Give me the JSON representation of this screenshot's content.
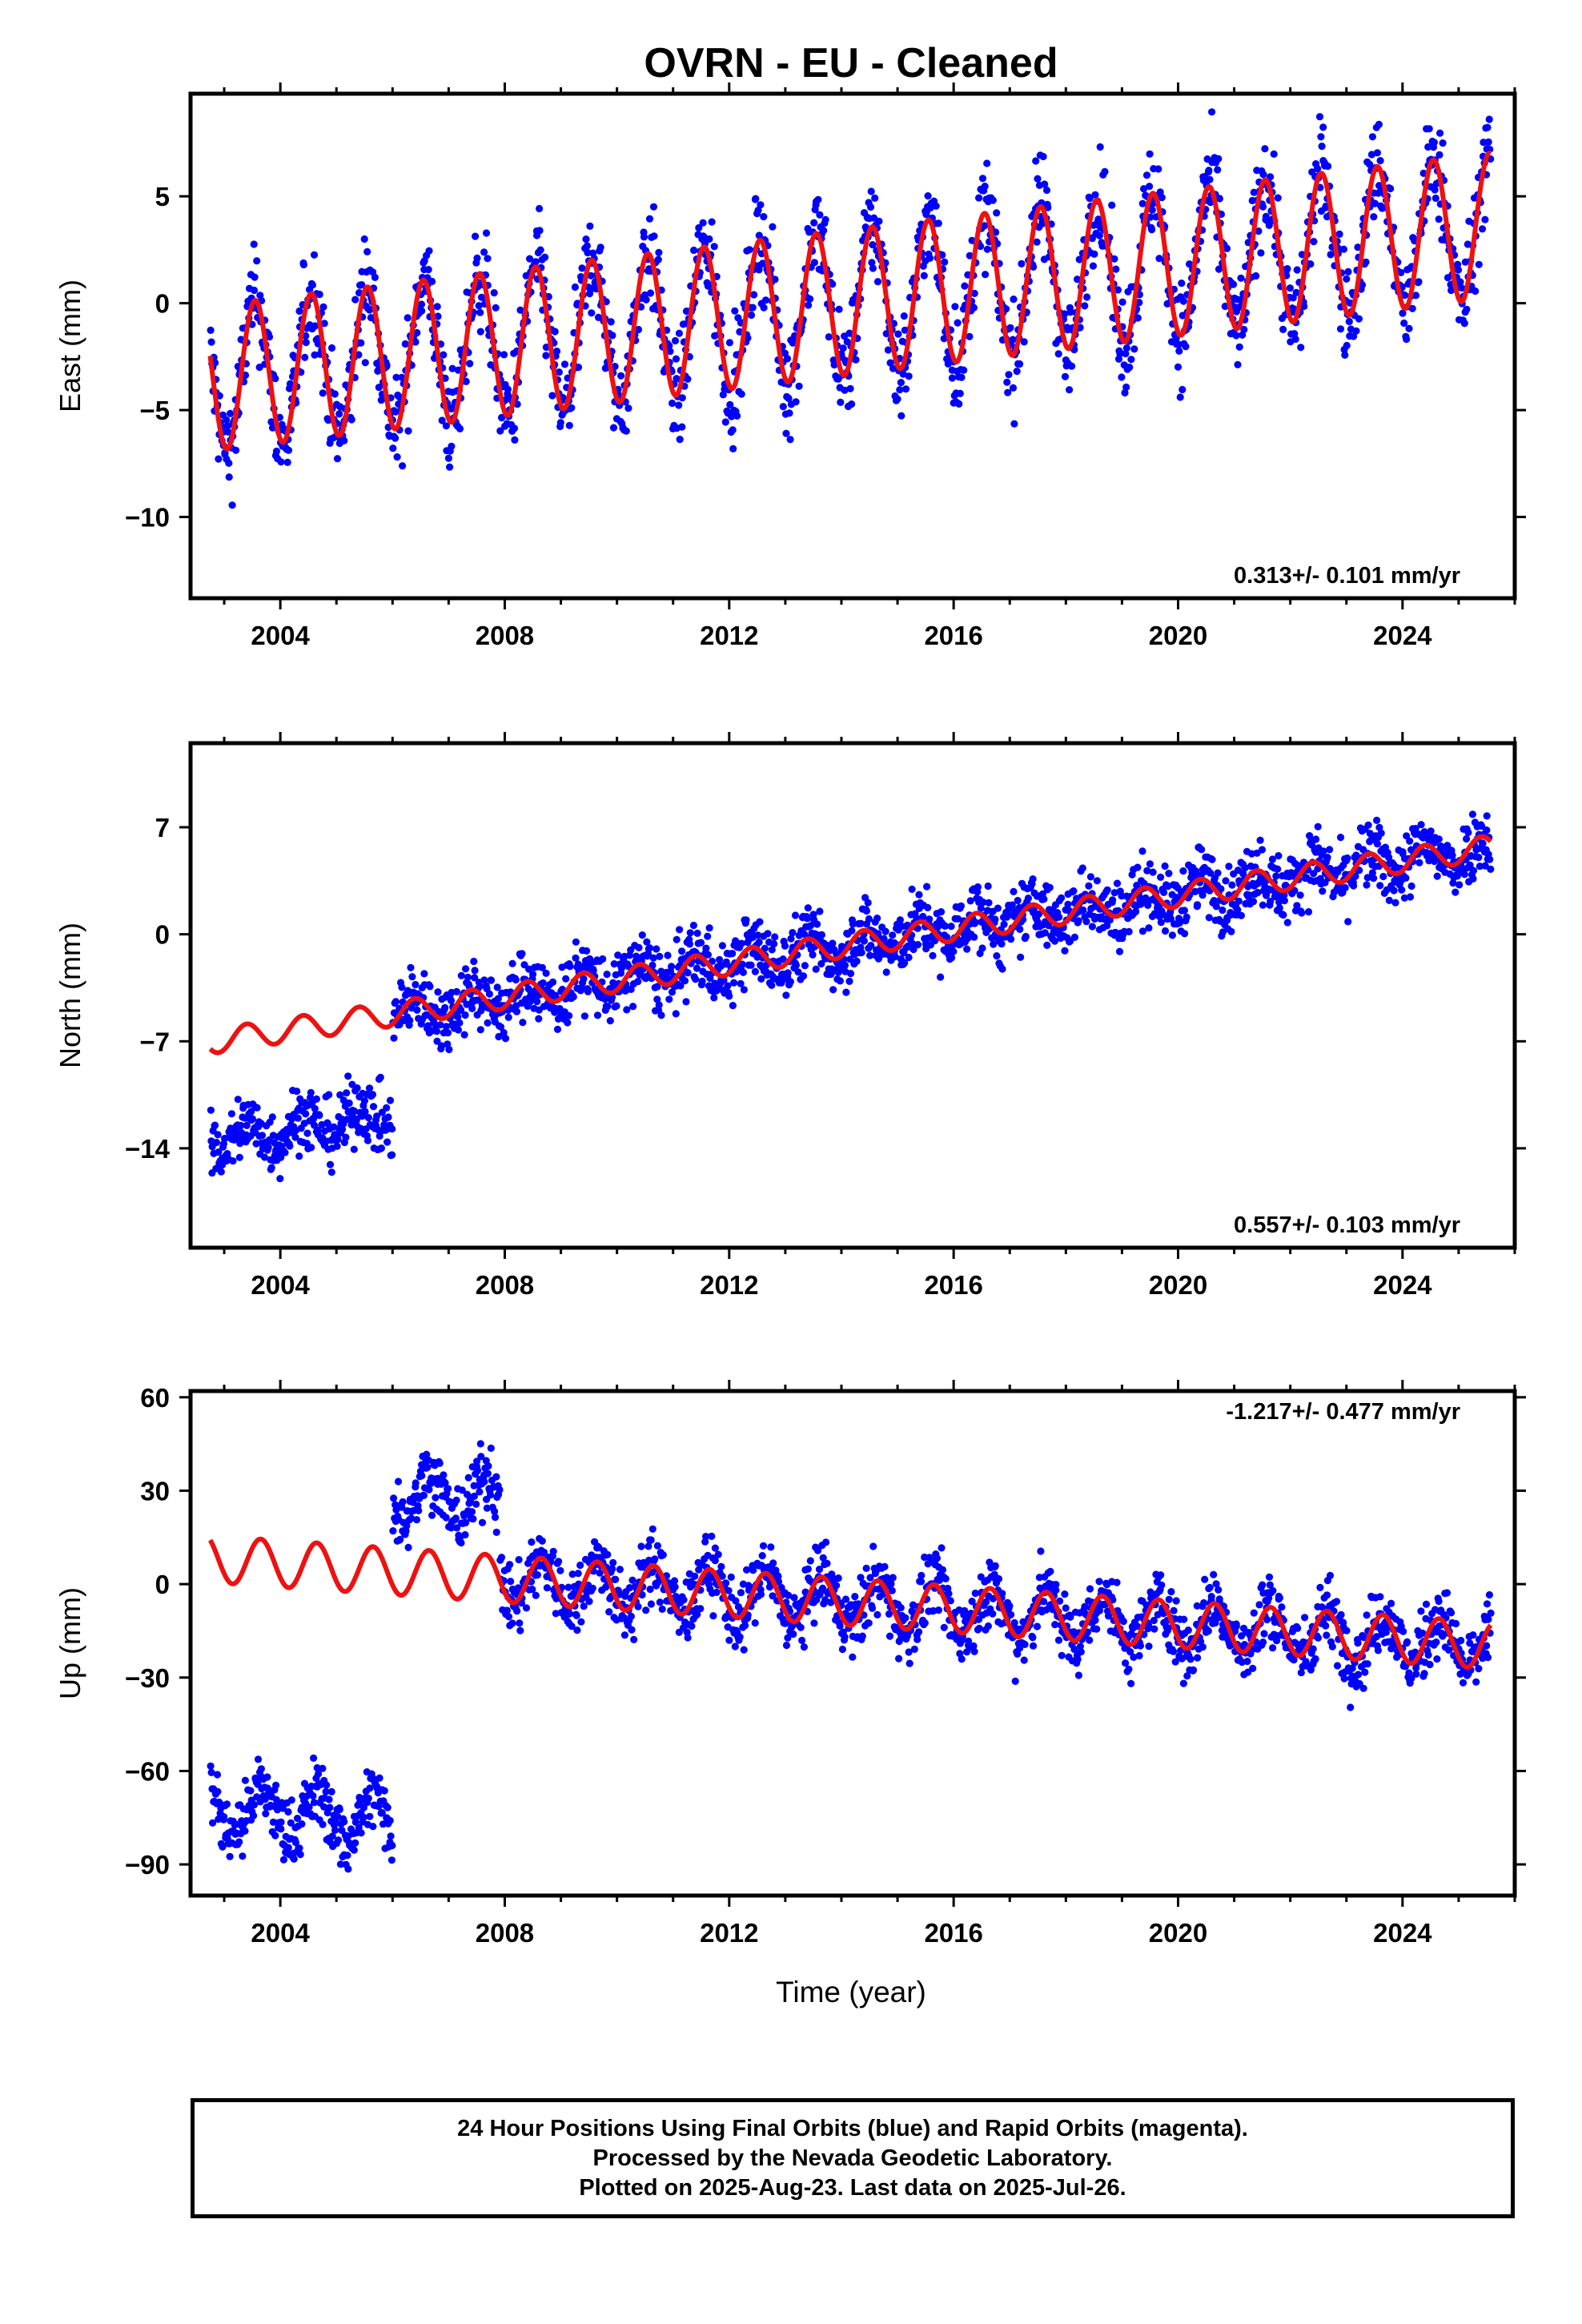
{
  "title": "OVRN  - EU - Cleaned",
  "colors": {
    "final_orbits": "#0000ff",
    "model_fit": "#ee1111",
    "frame": "#000000"
  },
  "chart_data": [
    {
      "type": "scatter",
      "component": "East",
      "ylabel": "East (mm)",
      "xlim": [
        2002.4,
        2026.0
      ],
      "ylim": [
        -13.8,
        9.8
      ],
      "xticks": [
        2004,
        2008,
        2012,
        2016,
        2020,
        2024
      ],
      "yticks": [
        -10,
        -5,
        0,
        5
      ],
      "ytick_labels": [
        "−10",
        "−5",
        "0",
        "5"
      ],
      "rate_label": "0.313+/- 0.101 mm/yr",
      "data_range": [
        2002.75,
        2025.57
      ],
      "model": {
        "intercept_at_2002_8": -3.5,
        "trend_mm_per_yr": 0.313,
        "annual_amplitude": 3.4,
        "annual_peak_phase": 0.55,
        "ramp_mm_per_yr": 0.0
      },
      "scatter_spread_mm": 1.2,
      "series": [
        {
          "name": "Final Orbits",
          "color": "#0000ff"
        },
        {
          "name": "Model",
          "color": "#ee1111"
        }
      ]
    },
    {
      "type": "scatter",
      "component": "North",
      "ylabel": "North (mm)",
      "xlim": [
        2002.4,
        2026.0
      ],
      "ylim": [
        -20.5,
        12.5
      ],
      "xticks": [
        2004,
        2008,
        2012,
        2016,
        2020,
        2024
      ],
      "yticks": [
        -14,
        -7,
        0,
        7
      ],
      "ytick_labels": [
        "−14",
        "−7",
        "0",
        "7"
      ],
      "rate_label": "0.557+/- 0.103 mm/yr",
      "data_range": [
        2002.75,
        2025.57
      ],
      "model": {
        "intercept_at_2002_8": -7.0,
        "trend_mm_per_yr": 0.557,
        "annual_amplitude": 0.8,
        "annual_peak_phase": 0.4
      },
      "offsets": [
        {
          "from": 2002.75,
          "to": 2006.0,
          "shift_mm": -6.5
        }
      ],
      "scatter_spread_mm": 1.1,
      "series": [
        {
          "name": "Final Orbits",
          "color": "#0000ff"
        },
        {
          "name": "Model",
          "color": "#ee1111"
        }
      ]
    },
    {
      "type": "scatter",
      "component": "Up",
      "ylabel": "Up (mm)",
      "xlim": [
        2002.4,
        2026.0
      ],
      "ylim": [
        -100,
        62
      ],
      "xticks": [
        2004,
        2008,
        2012,
        2016,
        2020,
        2024
      ],
      "yticks": [
        -90,
        -60,
        -30,
        0,
        30,
        60
      ],
      "ytick_labels": [
        "−90",
        "−60",
        "−30",
        "0",
        "30",
        "60"
      ],
      "rate_label": "-1.217+/- 0.477 mm/yr",
      "data_range": [
        2002.75,
        2025.57
      ],
      "model": {
        "intercept_at_2002_8": 8.0,
        "trend_mm_per_yr": -1.217,
        "annual_amplitude": 7.5,
        "annual_peak_phase": 0.65
      },
      "offsets": [
        {
          "from": 2002.75,
          "to": 2006.0,
          "shift_mm": -80.0
        },
        {
          "from": 2006.0,
          "to": 2007.9,
          "shift_mm": 25.0
        }
      ],
      "scatter_spread_mm": 5.5,
      "series": [
        {
          "name": "Final Orbits",
          "color": "#0000ff"
        },
        {
          "name": "Model",
          "color": "#ee1111"
        }
      ]
    }
  ],
  "xlabel": "Time (year)",
  "caption": [
    "24 Hour Positions Using Final Orbits (blue) and Rapid Orbits (magenta).",
    "Processed by the Nevada Geodetic Laboratory.",
    "Plotted on 2025-Aug-23. Last data on 2025-Jul-26."
  ]
}
